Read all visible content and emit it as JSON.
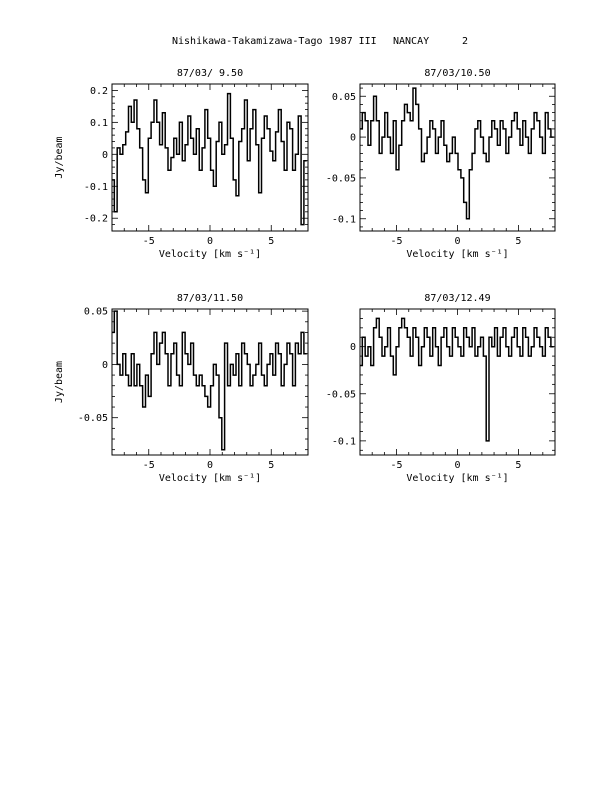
{
  "header": {
    "title": "Nishikawa-Takamizawa-Tago 1987 III",
    "station": "NANCAY",
    "page_number": "2"
  },
  "chart_data": [
    {
      "type": "line",
      "title": "87/03/ 9.50",
      "xlabel": "Velocity [km s⁻¹]",
      "ylabel": "Jy/beam",
      "xlim": [
        -8,
        8
      ],
      "ylim": [
        -0.24,
        0.22
      ],
      "x_ticks": [
        -5,
        0,
        5
      ],
      "y_ticks": [
        -0.2,
        -0.1,
        0,
        0.1,
        0.2
      ],
      "y_tick_labels": [
        "-0.2",
        "-0.1",
        "0",
        "0.1",
        "0.2"
      ],
      "x": [
        -7.93,
        -7.7,
        -7.46,
        -7.23,
        -7.0,
        -6.77,
        -6.54,
        -6.31,
        -6.08,
        -5.85,
        -5.62,
        -5.38,
        -5.15,
        -4.92,
        -4.69,
        -4.46,
        -4.23,
        -4.0,
        -3.77,
        -3.54,
        -3.31,
        -3.07,
        -2.84,
        -2.61,
        -2.38,
        -2.15,
        -1.92,
        -1.69,
        -1.46,
        -1.23,
        -1.0,
        -0.76,
        -0.53,
        -0.3,
        -0.07,
        0.16,
        0.39,
        0.62,
        0.85,
        1.08,
        1.31,
        1.55,
        1.78,
        2.01,
        2.24,
        2.47,
        2.7,
        2.93,
        3.16,
        3.39,
        3.62,
        3.86,
        4.09,
        4.32,
        4.55,
        4.78,
        5.01,
        5.24,
        5.47,
        5.7,
        5.93,
        6.17,
        6.4,
        6.63,
        6.86,
        7.09,
        7.32,
        7.55,
        7.78
      ],
      "values": [
        -0.08,
        -0.18,
        0.02,
        0.0,
        0.03,
        0.07,
        0.15,
        0.1,
        0.17,
        0.08,
        0.02,
        -0.08,
        -0.12,
        0.05,
        0.1,
        0.17,
        0.1,
        0.03,
        0.13,
        0.02,
        -0.05,
        -0.01,
        0.05,
        0.0,
        0.1,
        -0.02,
        0.03,
        0.12,
        0.05,
        0.0,
        0.08,
        -0.05,
        0.02,
        0.14,
        0.05,
        -0.05,
        -0.1,
        0.04,
        0.1,
        0.0,
        0.03,
        0.19,
        0.05,
        -0.08,
        -0.13,
        0.04,
        0.08,
        0.17,
        -0.02,
        0.08,
        0.14,
        0.03,
        -0.12,
        0.05,
        0.12,
        0.08,
        0.01,
        -0.02,
        0.07,
        0.14,
        0.04,
        -0.05,
        0.1,
        0.08,
        -0.05,
        0.0,
        0.12,
        -0.22,
        -0.02
      ]
    },
    {
      "type": "line",
      "title": "87/03/10.50",
      "xlabel": "Velocity [km s⁻¹]",
      "ylabel": "",
      "xlim": [
        -8,
        8
      ],
      "ylim": [
        -0.115,
        0.065
      ],
      "x_ticks": [
        -5,
        0,
        5
      ],
      "y_ticks": [
        -0.1,
        -0.05,
        0,
        0.05
      ],
      "y_tick_labels": [
        "-0.1",
        "-0.05",
        "0",
        "0.05"
      ],
      "x": [
        -7.93,
        -7.7,
        -7.46,
        -7.23,
        -7.0,
        -6.77,
        -6.54,
        -6.31,
        -6.08,
        -5.85,
        -5.62,
        -5.38,
        -5.15,
        -4.92,
        -4.69,
        -4.46,
        -4.23,
        -4.0,
        -3.77,
        -3.54,
        -3.31,
        -3.07,
        -2.84,
        -2.61,
        -2.38,
        -2.15,
        -1.92,
        -1.69,
        -1.46,
        -1.23,
        -1.0,
        -0.76,
        -0.53,
        -0.3,
        -0.07,
        0.16,
        0.39,
        0.62,
        0.85,
        1.08,
        1.31,
        1.55,
        1.78,
        2.01,
        2.24,
        2.47,
        2.7,
        2.93,
        3.16,
        3.39,
        3.62,
        3.86,
        4.09,
        4.32,
        4.55,
        4.78,
        5.01,
        5.24,
        5.47,
        5.7,
        5.93,
        6.17,
        6.4,
        6.63,
        6.86,
        7.09,
        7.32,
        7.55,
        7.78
      ],
      "values": [
        0.01,
        0.03,
        0.02,
        -0.01,
        0.02,
        0.05,
        0.02,
        -0.02,
        0.0,
        0.03,
        0.0,
        -0.02,
        0.02,
        -0.04,
        -0.01,
        0.02,
        0.04,
        0.03,
        0.02,
        0.06,
        0.04,
        0.01,
        -0.03,
        -0.02,
        0.0,
        0.02,
        0.01,
        -0.02,
        0.0,
        0.02,
        -0.01,
        -0.03,
        -0.02,
        0.0,
        -0.02,
        -0.04,
        -0.05,
        -0.08,
        -0.1,
        -0.04,
        -0.02,
        0.01,
        0.02,
        0.0,
        -0.02,
        -0.03,
        0.0,
        0.02,
        0.01,
        -0.01,
        0.02,
        0.01,
        -0.02,
        0.0,
        0.02,
        0.03,
        0.01,
        -0.01,
        0.02,
        0.0,
        -0.02,
        0.01,
        0.03,
        0.02,
        0.0,
        -0.02,
        0.03,
        0.01,
        0.0
      ]
    },
    {
      "type": "line",
      "title": "87/03/11.50",
      "xlabel": "Velocity [km s⁻¹]",
      "ylabel": "Jy/beam",
      "xlim": [
        -8,
        8
      ],
      "ylim": [
        -0.085,
        0.052
      ],
      "x_ticks": [
        -5,
        0,
        5
      ],
      "y_ticks": [
        -0.05,
        0,
        0.05
      ],
      "y_tick_labels": [
        "-0.05",
        "0",
        "0.05"
      ],
      "x": [
        -7.93,
        -7.7,
        -7.46,
        -7.23,
        -7.0,
        -6.77,
        -6.54,
        -6.31,
        -6.08,
        -5.85,
        -5.62,
        -5.38,
        -5.15,
        -4.92,
        -4.69,
        -4.46,
        -4.23,
        -4.0,
        -3.77,
        -3.54,
        -3.31,
        -3.07,
        -2.84,
        -2.61,
        -2.38,
        -2.15,
        -1.92,
        -1.69,
        -1.46,
        -1.23,
        -1.0,
        -0.76,
        -0.53,
        -0.3,
        -0.07,
        0.16,
        0.39,
        0.62,
        0.85,
        1.08,
        1.31,
        1.55,
        1.78,
        2.01,
        2.24,
        2.47,
        2.7,
        2.93,
        3.16,
        3.39,
        3.62,
        3.86,
        4.09,
        4.32,
        4.55,
        4.78,
        5.01,
        5.24,
        5.47,
        5.7,
        5.93,
        6.17,
        6.4,
        6.63,
        6.86,
        7.09,
        7.32,
        7.55,
        7.78
      ],
      "values": [
        0.03,
        0.05,
        0.0,
        -0.01,
        0.01,
        -0.01,
        -0.02,
        0.01,
        -0.02,
        0.0,
        -0.02,
        -0.04,
        -0.01,
        -0.03,
        0.01,
        0.03,
        0.0,
        0.02,
        0.03,
        0.01,
        -0.02,
        0.01,
        0.02,
        -0.01,
        -0.02,
        0.03,
        0.01,
        0.0,
        0.02,
        -0.01,
        -0.02,
        -0.01,
        -0.02,
        -0.03,
        -0.04,
        -0.02,
        0.0,
        -0.01,
        -0.05,
        -0.08,
        0.02,
        -0.02,
        0.0,
        -0.01,
        0.01,
        -0.02,
        0.02,
        0.01,
        0.0,
        -0.02,
        -0.01,
        0.0,
        0.02,
        -0.01,
        -0.02,
        0.0,
        0.01,
        -0.01,
        0.02,
        0.01,
        -0.02,
        0.0,
        0.02,
        0.01,
        -0.02,
        0.02,
        0.01,
        0.03,
        0.01
      ]
    },
    {
      "type": "line",
      "title": "87/03/12.49",
      "xlabel": "Velocity [km s⁻¹]",
      "ylabel": "",
      "xlim": [
        -8,
        8
      ],
      "ylim": [
        -0.115,
        0.04
      ],
      "x_ticks": [
        -5,
        0,
        5
      ],
      "y_ticks": [
        -0.1,
        -0.05,
        0
      ],
      "y_tick_labels": [
        "-0.1",
        "-0.05",
        "0"
      ],
      "x": [
        -7.93,
        -7.7,
        -7.46,
        -7.23,
        -7.0,
        -6.77,
        -6.54,
        -6.31,
        -6.08,
        -5.85,
        -5.62,
        -5.38,
        -5.15,
        -4.92,
        -4.69,
        -4.46,
        -4.23,
        -4.0,
        -3.77,
        -3.54,
        -3.31,
        -3.07,
        -2.84,
        -2.61,
        -2.38,
        -2.15,
        -1.92,
        -1.69,
        -1.46,
        -1.23,
        -1.0,
        -0.76,
        -0.53,
        -0.3,
        -0.07,
        0.16,
        0.39,
        0.62,
        0.85,
        1.08,
        1.31,
        1.55,
        1.78,
        2.01,
        2.24,
        2.47,
        2.7,
        2.93,
        3.16,
        3.39,
        3.62,
        3.86,
        4.09,
        4.32,
        4.55,
        4.78,
        5.01,
        5.24,
        5.47,
        5.7,
        5.93,
        6.17,
        6.4,
        6.63,
        6.86,
        7.09,
        7.32,
        7.55,
        7.78
      ],
      "values": [
        -0.02,
        0.01,
        -0.01,
        0.0,
        -0.02,
        0.02,
        0.03,
        0.01,
        -0.01,
        0.0,
        0.02,
        -0.01,
        -0.03,
        0.0,
        0.02,
        0.03,
        0.02,
        0.01,
        -0.01,
        0.02,
        0.01,
        -0.02,
        0.0,
        0.02,
        0.01,
        -0.01,
        0.02,
        0.0,
        -0.02,
        0.01,
        0.02,
        0.0,
        -0.01,
        0.02,
        0.01,
        0.0,
        -0.01,
        0.02,
        0.01,
        0.0,
        0.02,
        -0.01,
        0.0,
        0.01,
        -0.01,
        -0.1,
        0.01,
        0.0,
        0.02,
        -0.01,
        0.01,
        0.02,
        0.0,
        -0.01,
        0.01,
        0.02,
        0.0,
        -0.01,
        0.02,
        0.01,
        -0.01,
        0.0,
        0.02,
        0.01,
        0.0,
        -0.01,
        0.02,
        0.01,
        0.0
      ]
    }
  ]
}
